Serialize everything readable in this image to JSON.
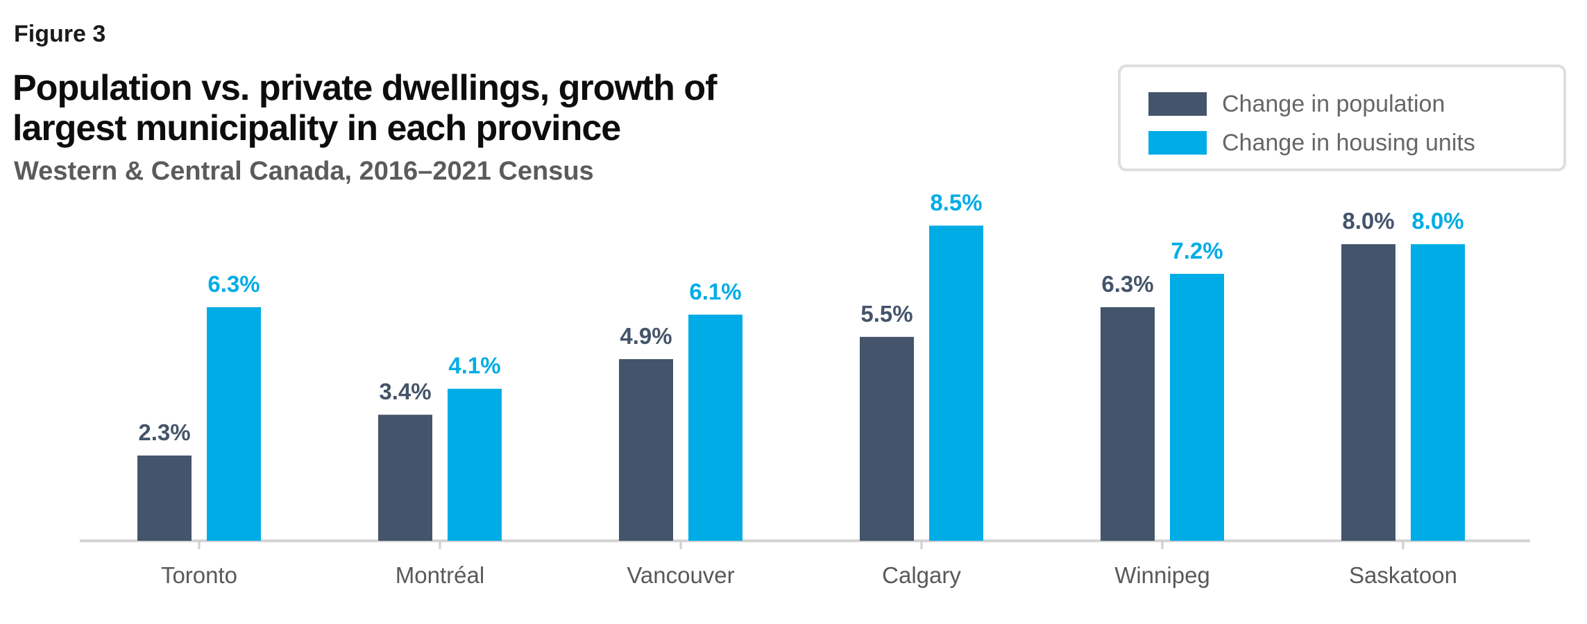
{
  "figure_label": "Figure 3",
  "title": "Population vs. private dwellings, growth of largest municipality in each province",
  "subtitle": "Western & Central Canada, 2016–2021 Census",
  "colors": {
    "population": "#44546a",
    "housing": "#00ace6"
  },
  "chart_data": {
    "type": "bar",
    "title": "Population vs. private dwellings, growth of largest municipality in each province",
    "subtitle": "Western & Central Canada, 2016–2021 Census",
    "xlabel": "",
    "ylabel": "",
    "ylim": [
      0,
      9.2
    ],
    "grid": false,
    "legend_position": "top-right",
    "categories": [
      "Toronto",
      "Montréal",
      "Vancouver",
      "Calgary",
      "Winnipeg",
      "Saskatoon"
    ],
    "series": [
      {
        "name": "Change in population",
        "values": [
          2.3,
          3.4,
          4.9,
          5.5,
          6.3,
          8.0
        ],
        "labels": [
          "2.3%",
          "3.4%",
          "4.9%",
          "5.5%",
          "6.3%",
          "8.0%"
        ]
      },
      {
        "name": "Change in housing units",
        "values": [
          6.3,
          4.1,
          6.1,
          8.5,
          7.2,
          8.0
        ],
        "labels": [
          "6.3%",
          "4.1%",
          "6.1%",
          "8.5%",
          "7.2%",
          "8.0%"
        ]
      }
    ]
  }
}
